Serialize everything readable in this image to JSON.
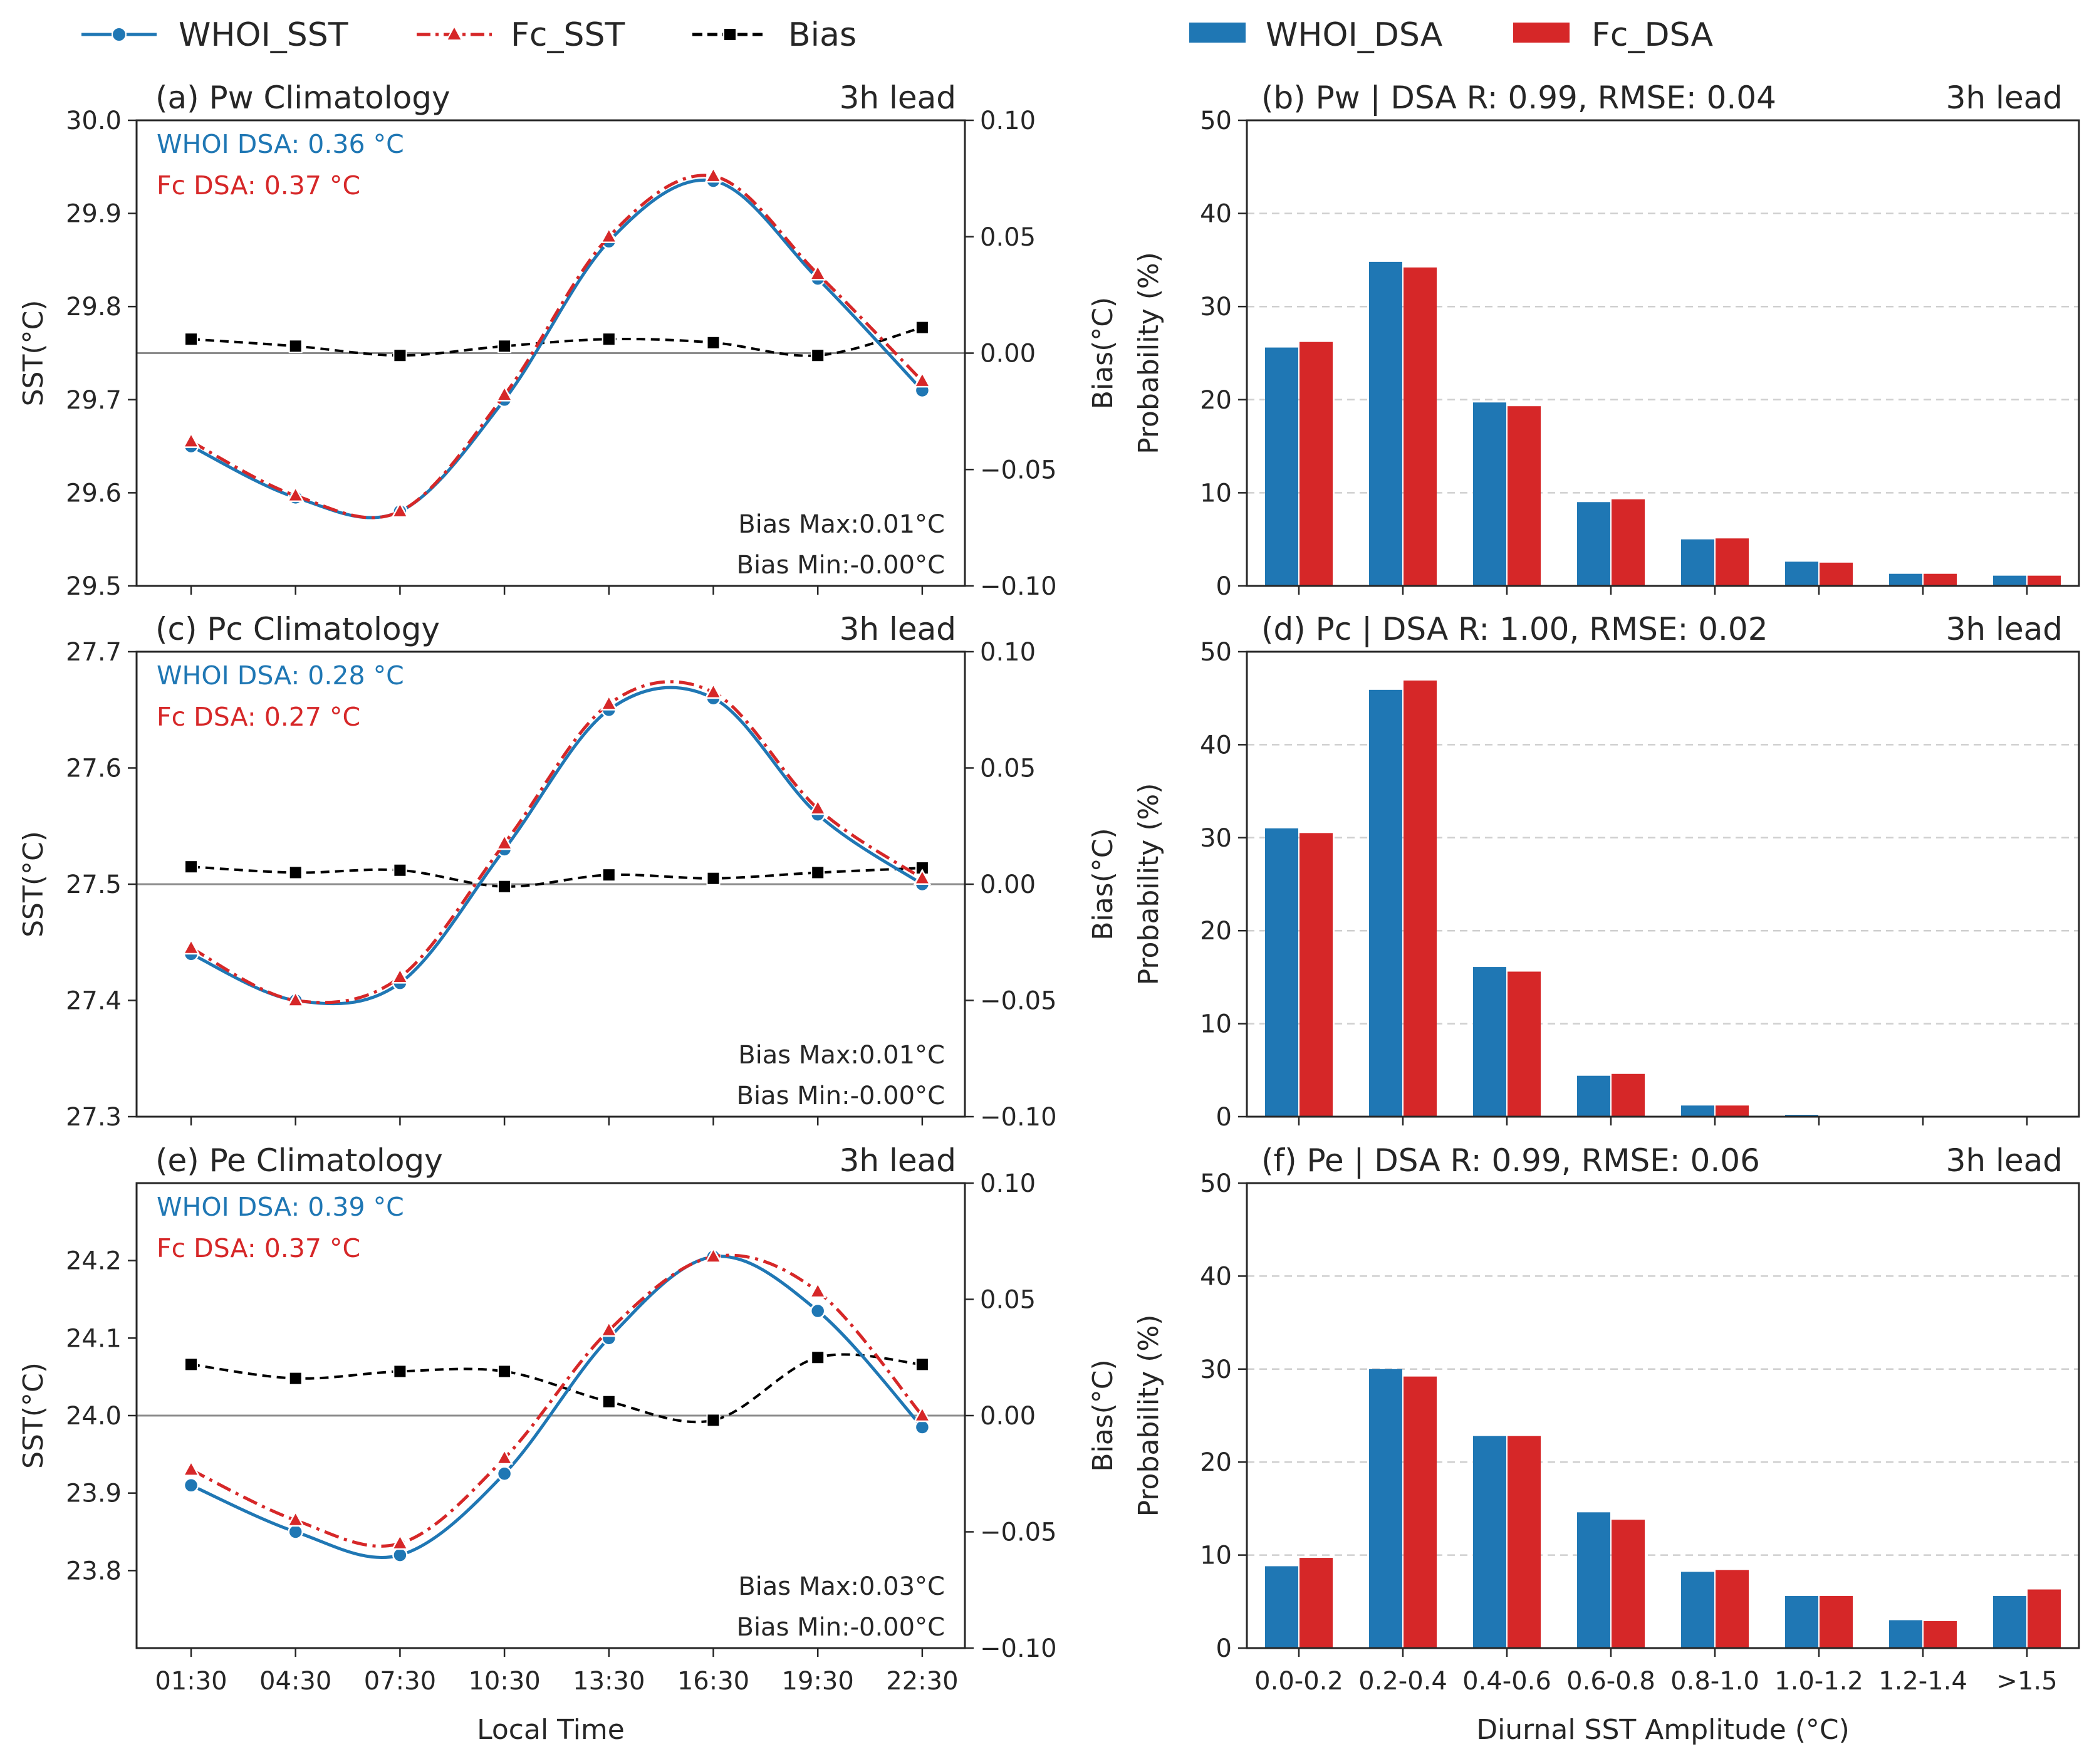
{
  "legend_left": [
    {
      "label": "WHOI_SST",
      "color": "#1f77b4",
      "marker": "circle",
      "dash": "solid"
    },
    {
      "label": "Fc_SST",
      "color": "#d62728",
      "marker": "triangle",
      "dash": "dashdot"
    },
    {
      "label": "Bias",
      "color": "#000000",
      "marker": "square",
      "dash": "dashed"
    }
  ],
  "legend_right": [
    {
      "label": "WHOI_DSA",
      "color": "#1f77b4"
    },
    {
      "label": "Fc_DSA",
      "color": "#d62728"
    }
  ],
  "chart_data": [
    {
      "type": "line",
      "panel": "a",
      "title": "(a) Pw Climatology",
      "lead": "3h lead",
      "xlabel": "",
      "ylabel": "SST(°C)",
      "ylabel_right": "Bias(°C)",
      "x": [
        "01:30",
        "04:30",
        "07:30",
        "10:30",
        "13:30",
        "16:30",
        "19:30",
        "22:30"
      ],
      "show_xticklabels": false,
      "ylim": [
        29.5,
        30.0
      ],
      "yticks": [
        29.5,
        29.6,
        29.7,
        29.8,
        29.9,
        30.0
      ],
      "ytick_labels": [
        "29.5",
        "29.6",
        "29.7",
        "29.8",
        "29.9",
        "30.0"
      ],
      "y2lim": [
        -0.1,
        0.1
      ],
      "y2ticks": [
        -0.1,
        -0.05,
        0.0,
        0.05,
        0.1
      ],
      "y2tick_labels": [
        "−0.10",
        "−0.05",
        "0.00",
        "0.05",
        "0.10"
      ],
      "series": [
        {
          "name": "WHOI_SST",
          "axis": "left",
          "values": [
            29.65,
            29.595,
            29.58,
            29.7,
            29.87,
            29.935,
            29.83,
            29.71
          ]
        },
        {
          "name": "Fc_SST",
          "axis": "left",
          "values": [
            29.655,
            29.597,
            29.58,
            29.705,
            29.875,
            29.94,
            29.835,
            29.72
          ]
        },
        {
          "name": "Bias",
          "axis": "right",
          "values": [
            0.006,
            0.003,
            -0.001,
            0.003,
            0.006,
            0.0045,
            -0.001,
            0.011
          ]
        }
      ],
      "annotations": {
        "whoi_dsa": "WHOI DSA: 0.36 °C",
        "fc_dsa": "Fc DSA: 0.37 °C",
        "bias_max": "Bias Max:0.01°C",
        "bias_min": "Bias Min:-0.00°C"
      }
    },
    {
      "type": "bar",
      "panel": "b",
      "title": "(b) Pw | DSA R: 0.99, RMSE: 0.04",
      "lead": "3h lead",
      "xlabel": "",
      "ylabel": "Probability (%)",
      "categories": [
        "0.0-0.2",
        "0.2-0.4",
        "0.4-0.6",
        "0.6-0.8",
        "0.8-1.0",
        "1.0-1.2",
        "1.2-1.4",
        ">1.5"
      ],
      "show_xticklabels": false,
      "ylim": [
        0,
        50
      ],
      "yticks": [
        0,
        10,
        20,
        30,
        40,
        50
      ],
      "ytick_labels": [
        "0",
        "10",
        "20",
        "30",
        "40",
        "50"
      ],
      "grid": true,
      "series": [
        {
          "name": "WHOI_DSA",
          "values": [
            25.6,
            34.8,
            19.7,
            9.0,
            5.0,
            2.6,
            1.3,
            1.1
          ]
        },
        {
          "name": "Fc_DSA",
          "values": [
            26.2,
            34.2,
            19.3,
            9.3,
            5.1,
            2.5,
            1.3,
            1.1
          ]
        }
      ]
    },
    {
      "type": "line",
      "panel": "c",
      "title": "(c) Pc Climatology",
      "lead": "3h lead",
      "xlabel": "",
      "ylabel": "SST(°C)",
      "ylabel_right": "Bias(°C)",
      "x": [
        "01:30",
        "04:30",
        "07:30",
        "10:30",
        "13:30",
        "16:30",
        "19:30",
        "22:30"
      ],
      "show_xticklabels": false,
      "ylim": [
        27.3,
        27.7
      ],
      "yticks": [
        27.3,
        27.4,
        27.5,
        27.6,
        27.7
      ],
      "ytick_labels": [
        "27.3",
        "27.4",
        "27.5",
        "27.6",
        "27.7"
      ],
      "y2lim": [
        -0.1,
        0.1
      ],
      "y2ticks": [
        -0.1,
        -0.05,
        0.0,
        0.05,
        0.1
      ],
      "y2tick_labels": [
        "−0.10",
        "−0.05",
        "0.00",
        "0.05",
        "0.10"
      ],
      "series": [
        {
          "name": "WHOI_SST",
          "axis": "left",
          "values": [
            27.44,
            27.4,
            27.415,
            27.53,
            27.65,
            27.66,
            27.56,
            27.5
          ]
        },
        {
          "name": "Fc_SST",
          "axis": "left",
          "values": [
            27.445,
            27.4,
            27.42,
            27.535,
            27.655,
            27.665,
            27.565,
            27.505
          ]
        },
        {
          "name": "Bias",
          "axis": "right",
          "values": [
            0.0075,
            0.005,
            0.006,
            -0.001,
            0.004,
            0.0025,
            0.005,
            0.007
          ]
        }
      ],
      "annotations": {
        "whoi_dsa": "WHOI DSA: 0.28 °C",
        "fc_dsa": "Fc DSA: 0.27 °C",
        "bias_max": "Bias Max:0.01°C",
        "bias_min": "Bias Min:-0.00°C"
      }
    },
    {
      "type": "bar",
      "panel": "d",
      "title": "(d) Pc | DSA R: 1.00, RMSE: 0.02",
      "lead": "3h lead",
      "xlabel": "",
      "ylabel": "Probability (%)",
      "categories": [
        "0.0-0.2",
        "0.2-0.4",
        "0.4-0.6",
        "0.6-0.8",
        "0.8-1.0",
        "1.0-1.2",
        "1.2-1.4",
        ">1.5"
      ],
      "show_xticklabels": false,
      "ylim": [
        0,
        50
      ],
      "yticks": [
        0,
        10,
        20,
        30,
        40,
        50
      ],
      "ytick_labels": [
        "0",
        "10",
        "20",
        "30",
        "40",
        "50"
      ],
      "grid": true,
      "series": [
        {
          "name": "WHOI_DSA",
          "values": [
            31.0,
            45.9,
            16.1,
            4.4,
            1.2,
            0.2,
            0.0,
            0.0
          ]
        },
        {
          "name": "Fc_DSA",
          "values": [
            30.5,
            46.9,
            15.6,
            4.6,
            1.2,
            0.1,
            0.0,
            0.0
          ]
        }
      ]
    },
    {
      "type": "line",
      "panel": "e",
      "title": "(e) Pe Climatology",
      "lead": "3h lead",
      "xlabel": "Local Time",
      "ylabel": "SST(°C)",
      "ylabel_right": "Bias(°C)",
      "x": [
        "01:30",
        "04:30",
        "07:30",
        "10:30",
        "13:30",
        "16:30",
        "19:30",
        "22:30"
      ],
      "show_xticklabels": true,
      "ylim": [
        23.7,
        24.3
      ],
      "yticks": [
        23.8,
        23.9,
        24.0,
        24.1,
        24.2
      ],
      "ytick_labels": [
        "23.8",
        "23.9",
        "24.0",
        "24.1",
        "24.2"
      ],
      "y2lim": [
        -0.1,
        0.1
      ],
      "y2ticks": [
        -0.1,
        -0.05,
        0.0,
        0.05,
        0.1
      ],
      "y2tick_labels": [
        "−0.10",
        "−0.05",
        "0.00",
        "0.05",
        "0.10"
      ],
      "series": [
        {
          "name": "WHOI_SST",
          "axis": "left",
          "values": [
            23.91,
            23.85,
            23.82,
            23.925,
            24.1,
            24.205,
            24.135,
            23.985
          ]
        },
        {
          "name": "Fc_SST",
          "axis": "left",
          "values": [
            23.93,
            23.865,
            23.835,
            23.945,
            24.11,
            24.205,
            24.16,
            24.0
          ]
        },
        {
          "name": "Bias",
          "axis": "right",
          "values": [
            0.022,
            0.016,
            0.019,
            0.019,
            0.006,
            -0.002,
            0.025,
            0.022
          ]
        }
      ],
      "annotations": {
        "whoi_dsa": "WHOI DSA: 0.39 °C",
        "fc_dsa": "Fc DSA: 0.37 °C",
        "bias_max": "Bias Max:0.03°C",
        "bias_min": "Bias Min:-0.00°C"
      }
    },
    {
      "type": "bar",
      "panel": "f",
      "title": "(f) Pe | DSA R: 0.99, RMSE: 0.06",
      "lead": "3h lead",
      "xlabel": "Diurnal SST Amplitude (°C)",
      "ylabel": "Probability (%)",
      "categories": [
        "0.0-0.2",
        "0.2-0.4",
        "0.4-0.6",
        "0.6-0.8",
        "0.8-1.0",
        "1.0-1.2",
        "1.2-1.4",
        ">1.5"
      ],
      "show_xticklabels": true,
      "ylim": [
        0,
        50
      ],
      "yticks": [
        0,
        10,
        20,
        30,
        40,
        50
      ],
      "ytick_labels": [
        "0",
        "10",
        "20",
        "30",
        "40",
        "50"
      ],
      "grid": true,
      "series": [
        {
          "name": "WHOI_DSA",
          "values": [
            8.8,
            30.0,
            22.8,
            14.6,
            8.2,
            5.6,
            3.0,
            5.6
          ]
        },
        {
          "name": "Fc_DSA",
          "values": [
            9.7,
            29.2,
            22.8,
            13.8,
            8.4,
            5.6,
            2.9,
            6.3
          ]
        }
      ]
    }
  ]
}
